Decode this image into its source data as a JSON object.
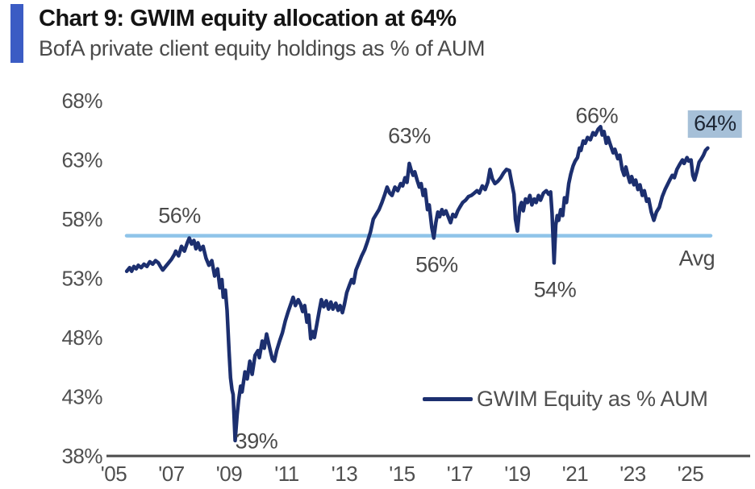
{
  "header": {
    "title": "Chart 9: GWIM equity allocation at 64%",
    "subtitle": "BofA private client equity holdings as % of AUM"
  },
  "colors": {
    "accent_bar": "#3B5CC4",
    "series_line": "#1C2F6F",
    "avg_line": "#8FC4E9",
    "highlight_box": "#A6C0D8",
    "axis_line": "#4A4A4A",
    "tick_text": "#4F4F4F",
    "annotation_text": "#4A4A4A",
    "highlight_text": "#1D2533"
  },
  "chart_data": {
    "type": "line",
    "title": "Chart 9: GWIM equity allocation at 64%",
    "subtitle": "BofA private client equity holdings as % of AUM",
    "xlabel": "",
    "ylabel": "",
    "grid": false,
    "xlim": [
      2004.8,
      2026.1
    ],
    "ylim": [
      38,
      68
    ],
    "x_ticks": {
      "years": [
        2005,
        2007,
        2009,
        2011,
        2013,
        2015,
        2017,
        2019,
        2021,
        2023,
        2025
      ],
      "labels": [
        "'05",
        "'07",
        "'09",
        "'11",
        "'13",
        "'15",
        "'17",
        "'19",
        "'21",
        "'23",
        "'25"
      ]
    },
    "y_ticks": {
      "values": [
        68,
        63,
        58,
        53,
        48,
        43,
        38
      ],
      "labels": [
        "68%",
        "63%",
        "58%",
        "53%",
        "48%",
        "43%",
        "38%"
      ]
    },
    "avg_line": {
      "value": 56.6,
      "label": "Avg"
    },
    "legend": {
      "position": "inside-bottom-right",
      "entries": [
        "GWIM Equity as % AUM"
      ]
    },
    "annotations": [
      {
        "label": "56%",
        "year": 2007.28,
        "value": 58.3,
        "highlight": false
      },
      {
        "label": "39%",
        "year": 2009.95,
        "value": 39.2,
        "highlight": false
      },
      {
        "label": "63%",
        "year": 2015.25,
        "value": 65.0,
        "highlight": false
      },
      {
        "label": "56%",
        "year": 2016.2,
        "value": 54.1,
        "highlight": false
      },
      {
        "label": "54%",
        "year": 2020.3,
        "value": 52.0,
        "highlight": false
      },
      {
        "label": "66%",
        "year": 2021.75,
        "value": 66.7,
        "highlight": false
      },
      {
        "label": "64%",
        "year": 2025.85,
        "value": 66.0,
        "highlight": true
      },
      {
        "label": "Avg",
        "year": 2025.22,
        "value": 54.7,
        "highlight": false
      }
    ],
    "series": [
      {
        "name": "GWIM Equity as % AUM",
        "color": "#1C2F6F",
        "points": [
          [
            2005.45,
            53.6
          ],
          [
            2005.55,
            53.9
          ],
          [
            2005.62,
            53.6
          ],
          [
            2005.7,
            54.0
          ],
          [
            2005.78,
            53.8
          ],
          [
            2005.85,
            54.1
          ],
          [
            2005.95,
            53.9
          ],
          [
            2006.05,
            54.2
          ],
          [
            2006.15,
            54.0
          ],
          [
            2006.25,
            54.4
          ],
          [
            2006.35,
            54.2
          ],
          [
            2006.45,
            54.5
          ],
          [
            2006.55,
            54.3
          ],
          [
            2006.62,
            54.0
          ],
          [
            2006.7,
            53.7
          ],
          [
            2006.8,
            54.0
          ],
          [
            2006.9,
            54.3
          ],
          [
            2007.0,
            54.6
          ],
          [
            2007.1,
            55.0
          ],
          [
            2007.15,
            55.3
          ],
          [
            2007.25,
            54.9
          ],
          [
            2007.35,
            55.7
          ],
          [
            2007.45,
            55.3
          ],
          [
            2007.55,
            56.0
          ],
          [
            2007.62,
            56.4
          ],
          [
            2007.7,
            55.9
          ],
          [
            2007.78,
            56.2
          ],
          [
            2007.85,
            55.5
          ],
          [
            2007.92,
            56.0
          ],
          [
            2008.0,
            55.4
          ],
          [
            2008.1,
            55.7
          ],
          [
            2008.2,
            54.7
          ],
          [
            2008.3,
            54.1
          ],
          [
            2008.4,
            54.5
          ],
          [
            2008.5,
            53.2
          ],
          [
            2008.6,
            53.8
          ],
          [
            2008.68,
            52.2
          ],
          [
            2008.75,
            52.9
          ],
          [
            2008.8,
            51.4
          ],
          [
            2008.87,
            52.0
          ],
          [
            2008.93,
            50.3
          ],
          [
            2009.0,
            46.8
          ],
          [
            2009.05,
            44.6
          ],
          [
            2009.1,
            43.6
          ],
          [
            2009.14,
            43.2
          ],
          [
            2009.17,
            41.5
          ],
          [
            2009.21,
            39.3
          ],
          [
            2009.28,
            41.5
          ],
          [
            2009.33,
            42.7
          ],
          [
            2009.4,
            43.9
          ],
          [
            2009.45,
            43.4
          ],
          [
            2009.55,
            45.1
          ],
          [
            2009.63,
            44.5
          ],
          [
            2009.72,
            46.0
          ],
          [
            2009.8,
            44.9
          ],
          [
            2009.9,
            46.5
          ],
          [
            2010.0,
            46.9
          ],
          [
            2010.05,
            46.3
          ],
          [
            2010.15,
            47.7
          ],
          [
            2010.22,
            47.1
          ],
          [
            2010.3,
            48.3
          ],
          [
            2010.4,
            47.2
          ],
          [
            2010.5,
            46.2
          ],
          [
            2010.57,
            46.0
          ],
          [
            2010.65,
            46.9
          ],
          [
            2010.75,
            47.7
          ],
          [
            2010.85,
            48.4
          ],
          [
            2010.95,
            49.4
          ],
          [
            2011.05,
            50.2
          ],
          [
            2011.15,
            50.9
          ],
          [
            2011.22,
            51.4
          ],
          [
            2011.3,
            50.7
          ],
          [
            2011.4,
            51.2
          ],
          [
            2011.48,
            50.8
          ],
          [
            2011.55,
            50.2
          ],
          [
            2011.62,
            50.7
          ],
          [
            2011.7,
            49.3
          ],
          [
            2011.76,
            49.9
          ],
          [
            2011.83,
            47.9
          ],
          [
            2011.9,
            48.5
          ],
          [
            2011.96,
            48.0
          ],
          [
            2012.05,
            49.2
          ],
          [
            2012.13,
            50.3
          ],
          [
            2012.2,
            51.2
          ],
          [
            2012.28,
            50.6
          ],
          [
            2012.37,
            51.1
          ],
          [
            2012.45,
            50.4
          ],
          [
            2012.53,
            51.0
          ],
          [
            2012.6,
            50.4
          ],
          [
            2012.7,
            50.9
          ],
          [
            2012.78,
            50.3
          ],
          [
            2012.85,
            50.7
          ],
          [
            2012.93,
            50.1
          ],
          [
            2013.0,
            50.8
          ],
          [
            2013.08,
            51.8
          ],
          [
            2013.17,
            52.4
          ],
          [
            2013.25,
            52.9
          ],
          [
            2013.32,
            52.6
          ],
          [
            2013.4,
            53.7
          ],
          [
            2013.5,
            54.3
          ],
          [
            2013.6,
            54.9
          ],
          [
            2013.7,
            55.4
          ],
          [
            2013.8,
            56.1
          ],
          [
            2013.9,
            56.9
          ],
          [
            2014.0,
            58.0
          ],
          [
            2014.1,
            58.4
          ],
          [
            2014.2,
            58.8
          ],
          [
            2014.3,
            59.4
          ],
          [
            2014.4,
            60.1
          ],
          [
            2014.48,
            60.7
          ],
          [
            2014.57,
            60.2
          ],
          [
            2014.65,
            60.0
          ],
          [
            2014.75,
            60.7
          ],
          [
            2014.85,
            60.4
          ],
          [
            2014.95,
            61.0
          ],
          [
            2015.02,
            60.8
          ],
          [
            2015.1,
            61.5
          ],
          [
            2015.17,
            61.1
          ],
          [
            2015.25,
            62.7
          ],
          [
            2015.32,
            62.1
          ],
          [
            2015.38,
            61.7
          ],
          [
            2015.44,
            62.0
          ],
          [
            2015.52,
            61.3
          ],
          [
            2015.6,
            60.7
          ],
          [
            2015.66,
            61.0
          ],
          [
            2015.73,
            60.0
          ],
          [
            2015.8,
            60.5
          ],
          [
            2015.88,
            58.8
          ],
          [
            2015.94,
            59.2
          ],
          [
            2016.03,
            57.3
          ],
          [
            2016.1,
            56.4
          ],
          [
            2016.17,
            57.7
          ],
          [
            2016.24,
            58.6
          ],
          [
            2016.3,
            58.2
          ],
          [
            2016.38,
            58.8
          ],
          [
            2016.44,
            58.4
          ],
          [
            2016.52,
            58.7
          ],
          [
            2016.6,
            58.2
          ],
          [
            2016.68,
            57.7
          ],
          [
            2016.76,
            58.4
          ],
          [
            2016.85,
            58.2
          ],
          [
            2016.93,
            58.7
          ],
          [
            2017.0,
            59.0
          ],
          [
            2017.1,
            59.4
          ],
          [
            2017.2,
            59.6
          ],
          [
            2017.3,
            59.9
          ],
          [
            2017.4,
            60.0
          ],
          [
            2017.5,
            60.2
          ],
          [
            2017.6,
            60.4
          ],
          [
            2017.68,
            60.2
          ],
          [
            2017.78,
            60.8
          ],
          [
            2017.88,
            60.5
          ],
          [
            2017.97,
            61.1
          ],
          [
            2018.05,
            62.2
          ],
          [
            2018.13,
            61.4
          ],
          [
            2018.22,
            61.0
          ],
          [
            2018.32,
            61.2
          ],
          [
            2018.42,
            61.5
          ],
          [
            2018.52,
            61.9
          ],
          [
            2018.62,
            62.2
          ],
          [
            2018.72,
            62.1
          ],
          [
            2018.8,
            61.1
          ],
          [
            2018.88,
            60.1
          ],
          [
            2018.93,
            58.0
          ],
          [
            2019.0,
            57.0
          ],
          [
            2019.08,
            59.0
          ],
          [
            2019.14,
            59.4
          ],
          [
            2019.2,
            58.7
          ],
          [
            2019.28,
            59.7
          ],
          [
            2019.35,
            59.4
          ],
          [
            2019.43,
            60.0
          ],
          [
            2019.5,
            59.2
          ],
          [
            2019.58,
            59.7
          ],
          [
            2019.65,
            59.4
          ],
          [
            2019.73,
            60.0
          ],
          [
            2019.8,
            59.6
          ],
          [
            2019.9,
            60.2
          ],
          [
            2020.0,
            60.4
          ],
          [
            2020.08,
            60.1
          ],
          [
            2020.15,
            60.3
          ],
          [
            2020.2,
            58.5
          ],
          [
            2020.27,
            54.3
          ],
          [
            2020.33,
            57.5
          ],
          [
            2020.38,
            58.3
          ],
          [
            2020.43,
            57.9
          ],
          [
            2020.5,
            58.8
          ],
          [
            2020.57,
            58.3
          ],
          [
            2020.63,
            59.8
          ],
          [
            2020.7,
            59.4
          ],
          [
            2020.78,
            61.0
          ],
          [
            2020.85,
            61.8
          ],
          [
            2020.93,
            62.5
          ],
          [
            2021.0,
            62.9
          ],
          [
            2021.08,
            63.2
          ],
          [
            2021.15,
            64.0
          ],
          [
            2021.2,
            63.8
          ],
          [
            2021.28,
            64.6
          ],
          [
            2021.35,
            64.4
          ],
          [
            2021.43,
            64.9
          ],
          [
            2021.53,
            64.7
          ],
          [
            2021.62,
            65.3
          ],
          [
            2021.7,
            65.1
          ],
          [
            2021.8,
            65.6
          ],
          [
            2021.88,
            65.8
          ],
          [
            2021.94,
            65.1
          ],
          [
            2022.0,
            65.4
          ],
          [
            2022.08,
            64.4
          ],
          [
            2022.14,
            64.9
          ],
          [
            2022.22,
            64.3
          ],
          [
            2022.32,
            63.6
          ],
          [
            2022.38,
            63.9
          ],
          [
            2022.48,
            63.1
          ],
          [
            2022.55,
            63.4
          ],
          [
            2022.63,
            62.2
          ],
          [
            2022.7,
            61.7
          ],
          [
            2022.76,
            62.4
          ],
          [
            2022.84,
            61.6
          ],
          [
            2022.9,
            61.1
          ],
          [
            2022.96,
            61.6
          ],
          [
            2023.04,
            60.9
          ],
          [
            2023.1,
            61.3
          ],
          [
            2023.18,
            60.5
          ],
          [
            2023.25,
            60.9
          ],
          [
            2023.33,
            60.0
          ],
          [
            2023.4,
            60.4
          ],
          [
            2023.48,
            59.5
          ],
          [
            2023.55,
            59.7
          ],
          [
            2023.64,
            58.6
          ],
          [
            2023.73,
            57.9
          ],
          [
            2023.82,
            58.6
          ],
          [
            2023.92,
            59.0
          ],
          [
            2024.02,
            59.9
          ],
          [
            2024.12,
            60.5
          ],
          [
            2024.2,
            60.9
          ],
          [
            2024.28,
            61.3
          ],
          [
            2024.37,
            61.7
          ],
          [
            2024.44,
            61.5
          ],
          [
            2024.53,
            62.2
          ],
          [
            2024.62,
            62.6
          ],
          [
            2024.72,
            63.0
          ],
          [
            2024.78,
            62.7
          ],
          [
            2024.88,
            63.2
          ],
          [
            2024.94,
            62.9
          ],
          [
            2025.02,
            63.0
          ],
          [
            2025.08,
            61.7
          ],
          [
            2025.14,
            61.3
          ],
          [
            2025.22,
            62.0
          ],
          [
            2025.3,
            62.8
          ],
          [
            2025.38,
            63.1
          ],
          [
            2025.45,
            63.4
          ],
          [
            2025.52,
            63.8
          ],
          [
            2025.6,
            64.0
          ]
        ]
      }
    ]
  }
}
